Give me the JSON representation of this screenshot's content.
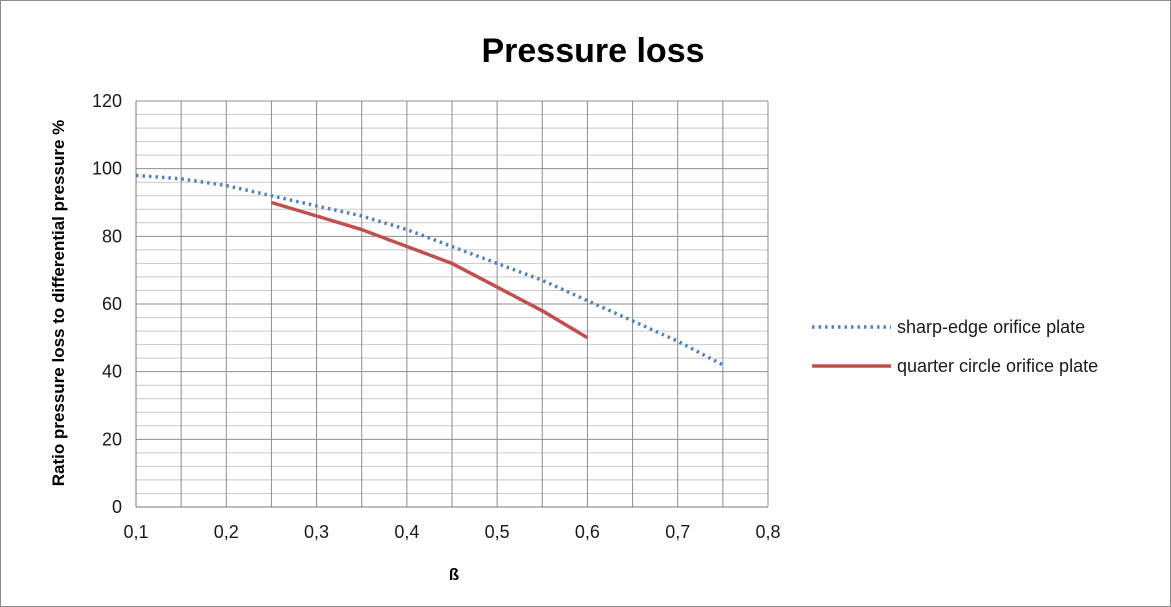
{
  "chart_data": {
    "type": "line",
    "title": "Pressure loss",
    "xlabel": "ß",
    "ylabel": "Ratio pressure loss to differential pressure %",
    "xlim": [
      0.1,
      0.8
    ],
    "ylim": [
      0,
      120
    ],
    "x_ticks": [
      "0,1",
      "0,2",
      "0,3",
      "0,4",
      "0,5",
      "0,6",
      "0,7",
      "0,8"
    ],
    "y_ticks": [
      "0",
      "20",
      "40",
      "60",
      "80",
      "100",
      "120"
    ],
    "grid": true,
    "legend_position": "right",
    "series": [
      {
        "name": "sharp-edge orifice plate",
        "style": "dotted",
        "color": "#4f81bd",
        "x": [
          0.1,
          0.15,
          0.2,
          0.25,
          0.3,
          0.35,
          0.4,
          0.45,
          0.5,
          0.55,
          0.6,
          0.65,
          0.7,
          0.75
        ],
        "y": [
          98,
          97,
          95,
          92,
          89,
          86,
          82,
          77,
          72,
          67,
          61,
          55,
          49,
          42
        ]
      },
      {
        "name": "quarter circle orifice plate",
        "style": "solid",
        "color": "#c0504d",
        "x": [
          0.25,
          0.3,
          0.35,
          0.4,
          0.45,
          0.5,
          0.55,
          0.6
        ],
        "y": [
          90,
          86,
          82,
          77,
          72,
          65,
          58,
          50
        ]
      }
    ]
  }
}
